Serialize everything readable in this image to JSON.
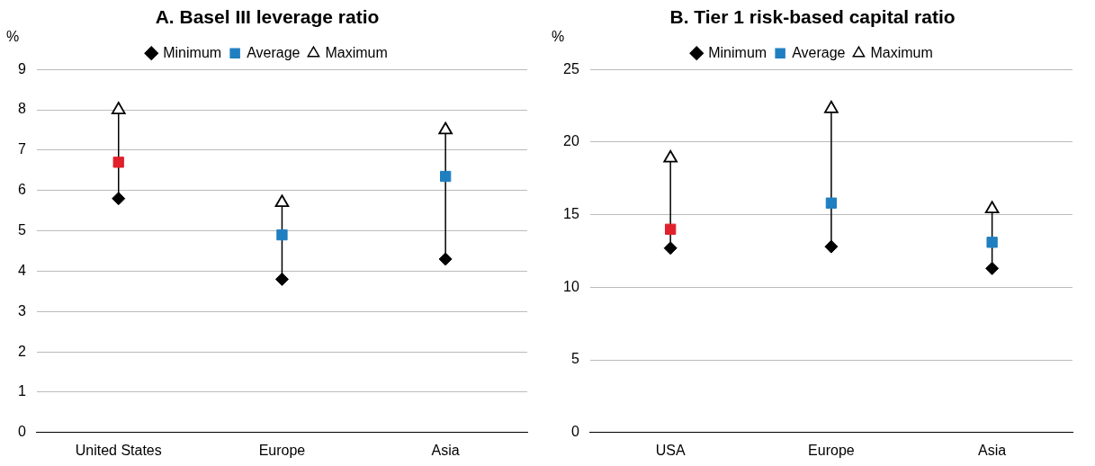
{
  "chart_data": [
    {
      "type": "scatter",
      "title": "A. Basel III leverage ratio",
      "ylabel": "%",
      "categories": [
        "United States",
        "Europe",
        "Asia"
      ],
      "ylim": [
        0,
        9
      ],
      "yticks": [
        0,
        1,
        2,
        3,
        4,
        5,
        6,
        7,
        8,
        9
      ],
      "grid": "y",
      "legend": "top",
      "series": [
        {
          "name": "Minimum",
          "color": "#000000",
          "marker": "diamond",
          "values": [
            5.8,
            3.8,
            4.3
          ]
        },
        {
          "name": "Average",
          "color": "#1f7fc0",
          "colors": [
            "#e0202a",
            "#1f7fc0",
            "#1f7fc0"
          ],
          "marker": "square",
          "values": [
            6.7,
            4.9,
            6.35
          ]
        },
        {
          "name": "Maximum",
          "color": "#000000",
          "marker": "triangle",
          "values": [
            8.0,
            5.7,
            7.5
          ]
        }
      ]
    },
    {
      "type": "scatter",
      "title": "B. Tier 1 risk-based capital ratio",
      "ylabel": "%",
      "categories": [
        "USA",
        "Europe",
        "Asia"
      ],
      "ylim": [
        0,
        25
      ],
      "yticks": [
        0,
        5,
        10,
        15,
        20,
        25
      ],
      "grid": "y",
      "legend": "top",
      "series": [
        {
          "name": "Minimum",
          "color": "#000000",
          "marker": "diamond",
          "values": [
            12.7,
            12.8,
            11.3
          ]
        },
        {
          "name": "Average",
          "color": "#1f7fc0",
          "colors": [
            "#e0202a",
            "#1f7fc0",
            "#1f7fc0"
          ],
          "marker": "square",
          "values": [
            14.0,
            15.8,
            13.1
          ]
        },
        {
          "name": "Maximum",
          "color": "#000000",
          "marker": "triangle",
          "values": [
            18.9,
            22.3,
            15.4
          ]
        }
      ]
    }
  ]
}
